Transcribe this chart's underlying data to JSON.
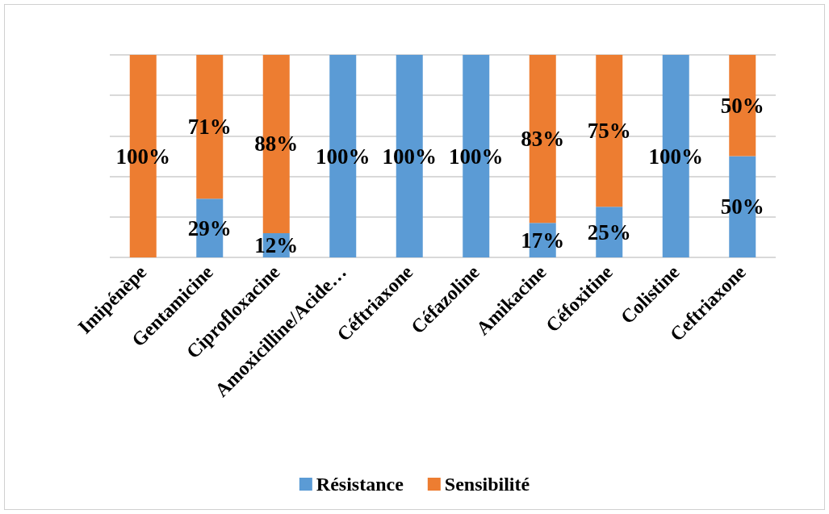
{
  "chart_data": {
    "type": "bar",
    "stacked": true,
    "categories": [
      "Imipénèpe",
      "Gentamicine",
      "Ciprofloxacine",
      "Amoxicilline/Acide…",
      "Céftriaxone",
      "Céfazoline",
      "Amikacine",
      "Céfoxitine",
      "Colistine",
      "Ceftriaxone"
    ],
    "series": [
      {
        "name": "Résistance",
        "color": "#5b9bd5",
        "values": [
          0,
          29,
          12,
          100,
          100,
          100,
          17,
          25,
          100,
          50
        ],
        "value_labels": [
          null,
          "29%",
          "12%",
          "100%",
          "100%",
          "100%",
          "17%",
          "25%",
          "100%",
          "50%"
        ]
      },
      {
        "name": "Sensibilité",
        "color": "#ed7d31",
        "values": [
          100,
          71,
          88,
          0,
          0,
          0,
          83,
          75,
          0,
          50
        ],
        "value_labels": [
          "100%",
          "71%",
          "88%",
          null,
          null,
          null,
          "83%",
          "75%",
          null,
          "50%"
        ]
      }
    ],
    "ylim": [
      0,
      100
    ],
    "yticks": [
      {
        "value": 0,
        "label": null
      },
      {
        "value": 20,
        "label": null
      },
      {
        "value": 40,
        "label": null
      },
      {
        "value": 60,
        "label": null
      },
      {
        "value": 80,
        "label": null
      },
      {
        "value": 100,
        "label": null
      }
    ],
    "tick_labels": "x",
    "grid": "y",
    "legend": "bottom"
  }
}
